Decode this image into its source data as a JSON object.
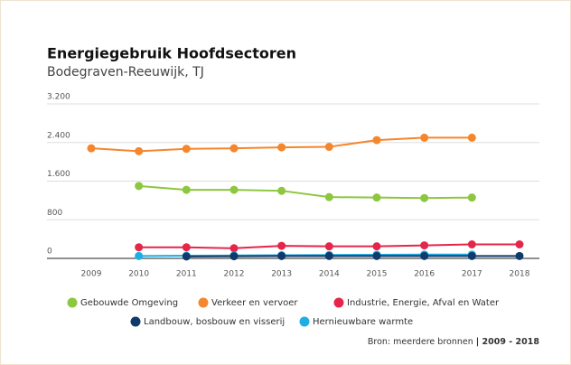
{
  "chart_data": {
    "type": "line",
    "title": "Energiegebruik Hoofdsectoren",
    "subtitle": "Bodegraven-Reeuwijk, TJ",
    "categories": [
      "2009",
      "2010",
      "2011",
      "2012",
      "2013",
      "2014",
      "2015",
      "2016",
      "2017",
      "2018"
    ],
    "series": [
      {
        "name": "Gebouwde Omgeving",
        "color": "#8dc63f",
        "values": [
          null,
          1500,
          1420,
          1420,
          1400,
          1270,
          1260,
          1250,
          1260,
          null
        ]
      },
      {
        "name": "Verkeer en vervoer",
        "color": "#f5862c",
        "values": [
          2280,
          2220,
          2270,
          2280,
          2300,
          2310,
          2450,
          2500,
          2500,
          null
        ]
      },
      {
        "name": "Industrie, Energie, Afval en Water",
        "color": "#e5264b",
        "values": [
          null,
          230,
          230,
          210,
          260,
          250,
          250,
          270,
          290,
          290
        ]
      },
      {
        "name": "Hernieuwbare warmte",
        "color": "#1eaee5",
        "values": [
          null,
          50,
          55,
          60,
          65,
          70,
          75,
          80,
          80,
          null
        ]
      },
      {
        "name": "Landbouw, bosbouw en visserij",
        "color": "#0f3b6a",
        "values": [
          null,
          null,
          40,
          45,
          50,
          50,
          50,
          50,
          50,
          50
        ]
      }
    ],
    "legend_order": [
      0,
      1,
      2,
      4,
      3
    ],
    "ylim": [
      0,
      3200
    ],
    "yticks": [
      0,
      800,
      {
        "value": 1600,
        "label": "1.600"
      },
      {
        "value": 2400,
        "label": "2.400"
      },
      {
        "value": 3200,
        "label": "3.200"
      }
    ],
    "grid": true,
    "source": "Bron: meerdere bronnen",
    "source_period": "| 2009 - 2018"
  }
}
